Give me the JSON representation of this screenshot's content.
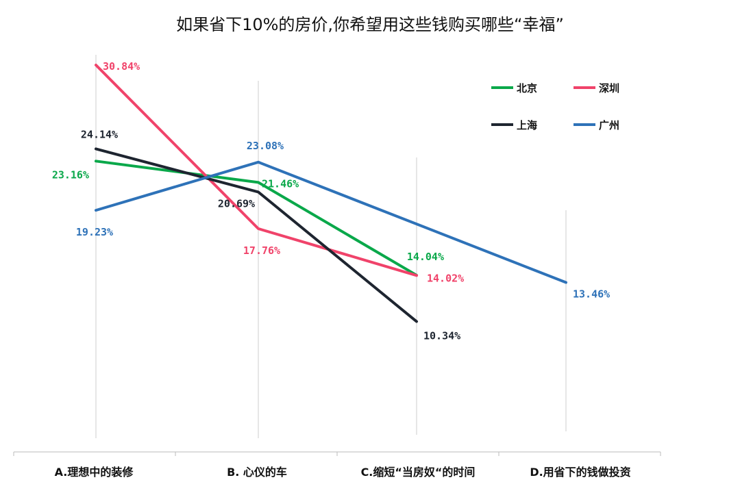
{
  "chart_data": {
    "type": "line",
    "title": "如果省下10%的房价,你希望用这些钱购买哪些“幸福”",
    "categories": [
      "A.理想中的装修",
      "B. 心仪的车",
      "C.缩短“当房奴“的时间",
      "D.用省下的钱做投资"
    ],
    "series": [
      {
        "name": "北京",
        "color": "#0aa84a",
        "values": [
          23.16,
          21.46,
          14.04,
          null
        ],
        "labels": [
          "23.16%",
          "21.46%",
          "14.04%",
          null
        ]
      },
      {
        "name": "深圳",
        "color": "#f0436a",
        "values": [
          30.84,
          17.76,
          14.02,
          null
        ],
        "labels": [
          "30.84%",
          "17.76%",
          "14.02%",
          null
        ]
      },
      {
        "name": "上海",
        "color": "#1e2530",
        "values": [
          24.14,
          20.69,
          10.34,
          null
        ],
        "labels": [
          "24.14%",
          "20.69%",
          "10.34%",
          null
        ]
      },
      {
        "name": "广州",
        "color": "#2e72b8",
        "values": [
          19.23,
          23.08,
          null,
          13.46
        ],
        "labels": [
          "19.23%",
          "23.08%",
          null,
          "13.46%"
        ]
      }
    ],
    "xlabel": "",
    "ylabel": "",
    "y_axis_visible": false,
    "grid": "vertical",
    "legend_position": "top-right"
  }
}
